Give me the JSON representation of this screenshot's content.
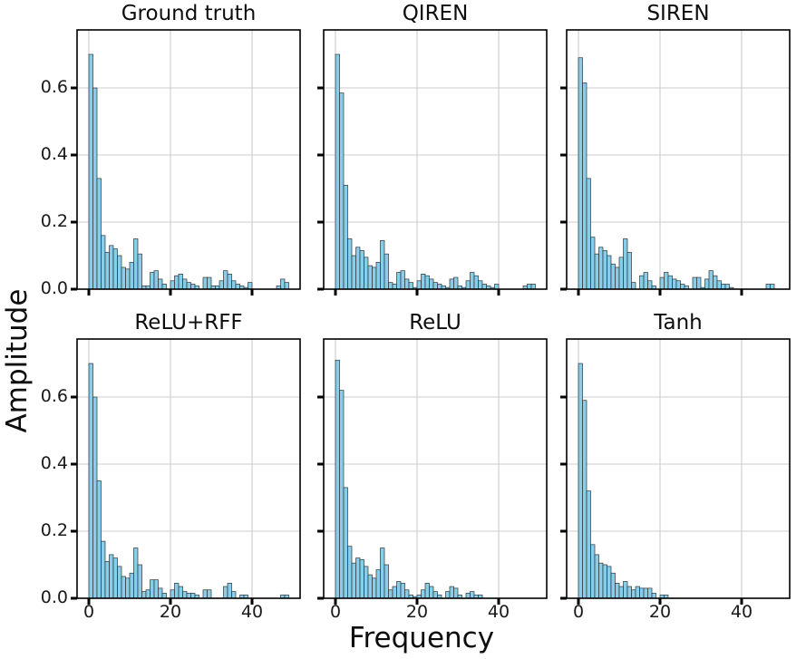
{
  "chart_data": {
    "type": "bar",
    "subtype": "histogram-grid",
    "layout": "2 rows x 3 columns, shared axes",
    "xlabel": "Frequency",
    "ylabel": "Amplitude",
    "xlim": [
      -3,
      52
    ],
    "ylim": [
      0,
      0.77
    ],
    "xticks": [
      0,
      20,
      40
    ],
    "yticks": [
      0.0,
      0.2,
      0.4,
      0.6
    ],
    "xtick_labels": [
      "0",
      "20",
      "40"
    ],
    "ytick_labels": [
      "0.0",
      "0.2",
      "0.4",
      "0.6"
    ],
    "grid": true,
    "grid_color": "#cccccc",
    "border_color": "#000000",
    "tick_color": "#000000",
    "bar_color": "#87CEEB",
    "bar_edge_color": "#333333",
    "bin_width": 1,
    "bin_start": 0,
    "subplots": [
      {
        "title": "Ground truth",
        "values": [
          0.7,
          0.6,
          0.33,
          0.16,
          0.11,
          0.13,
          0.12,
          0.1,
          0.065,
          0.06,
          0.08,
          0.15,
          0.105,
          0.01,
          0.01,
          0.05,
          0.055,
          0.03,
          0.015,
          0,
          0.025,
          0.04,
          0.045,
          0.03,
          0.02,
          0.015,
          0.01,
          0,
          0.035,
          0.035,
          0.01,
          0.01,
          0.025,
          0.055,
          0.045,
          0.025,
          0.015,
          0.01,
          0.005,
          0.02,
          0,
          0,
          0,
          0,
          0,
          0,
          0.01,
          0.03,
          0.02,
          0,
          0,
          0
        ]
      },
      {
        "title": "QIREN",
        "values": [
          0.7,
          0.585,
          0.31,
          0.15,
          0.1,
          0.125,
          0.115,
          0.095,
          0.07,
          0.065,
          0.08,
          0.145,
          0.105,
          0.02,
          0.015,
          0.05,
          0.055,
          0.03,
          0.02,
          0.005,
          0.025,
          0.045,
          0.04,
          0.03,
          0.02,
          0.015,
          0.01,
          0.005,
          0.03,
          0.035,
          0.01,
          0.005,
          0.025,
          0.05,
          0.04,
          0.025,
          0.015,
          0.01,
          0.005,
          0.015,
          0,
          0,
          0,
          0,
          0,
          0,
          0.01,
          0.015,
          0.015,
          0,
          0,
          0
        ]
      },
      {
        "title": "SIREN",
        "values": [
          0.69,
          0.615,
          0.33,
          0.155,
          0.105,
          0.125,
          0.115,
          0.1,
          0.075,
          0.065,
          0.095,
          0.15,
          0.11,
          0.02,
          0,
          0.04,
          0.05,
          0.025,
          0.01,
          0,
          0.035,
          0.05,
          0.04,
          0.03,
          0.025,
          0.015,
          0.01,
          0,
          0.035,
          0.035,
          0.005,
          0.03,
          0.055,
          0.04,
          0.025,
          0.015,
          0.015,
          0.005,
          0,
          0,
          0,
          0,
          0,
          0,
          0,
          0,
          0.015,
          0.015,
          0,
          0,
          0,
          0
        ]
      },
      {
        "title": "ReLU+RFF",
        "values": [
          0.7,
          0.6,
          0.35,
          0.17,
          0.11,
          0.13,
          0.12,
          0.095,
          0.065,
          0.06,
          0.075,
          0.15,
          0.1,
          0.02,
          0.025,
          0.055,
          0.055,
          0.03,
          0.015,
          0,
          0.025,
          0.045,
          0.035,
          0.02,
          0.015,
          0.015,
          0.01,
          0,
          0.025,
          0.025,
          0,
          0,
          0,
          0.035,
          0.045,
          0.02,
          0,
          0.01,
          0.01,
          0,
          0,
          0,
          0,
          0,
          0,
          0,
          0,
          0.01,
          0.01,
          0,
          0,
          0
        ]
      },
      {
        "title": "ReLU",
        "values": [
          0.71,
          0.62,
          0.33,
          0.155,
          0.105,
          0.12,
          0.115,
          0.095,
          0.07,
          0.06,
          0.085,
          0.15,
          0.1,
          0.025,
          0.035,
          0.05,
          0.045,
          0.025,
          0.01,
          0.005,
          0.01,
          0.025,
          0.045,
          0.035,
          0.02,
          0.01,
          0,
          0.02,
          0.035,
          0.03,
          0.01,
          0,
          0.015,
          0.02,
          0.01,
          0.01,
          0,
          0,
          0,
          0,
          0,
          0,
          0,
          0,
          0,
          0,
          0,
          0,
          0,
          0,
          0,
          0
        ]
      },
      {
        "title": "Tanh",
        "values": [
          0.7,
          0.59,
          0.32,
          0.16,
          0.13,
          0.105,
          0.1,
          0.095,
          0.075,
          0.045,
          0.035,
          0.05,
          0.035,
          0.025,
          0.035,
          0.03,
          0.03,
          0.03,
          0.015,
          0,
          0.01,
          0.01,
          0,
          0,
          0,
          0,
          0,
          0,
          0,
          0,
          0,
          0,
          0,
          0,
          0,
          0,
          0,
          0,
          0,
          0,
          0,
          0,
          0,
          0,
          0,
          0,
          0,
          0,
          0,
          0,
          0,
          0
        ]
      }
    ]
  }
}
